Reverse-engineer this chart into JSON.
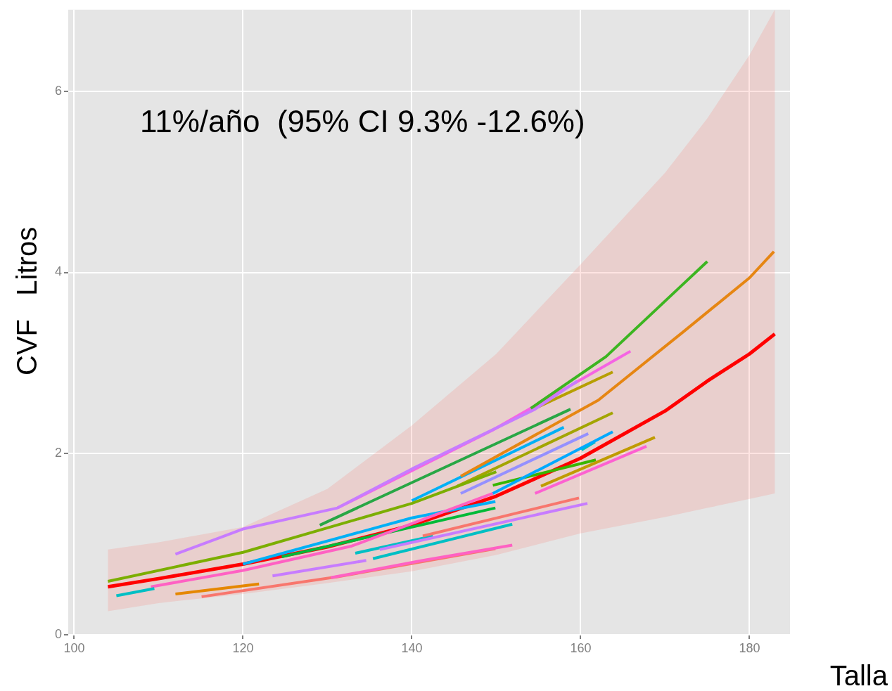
{
  "chart_data": {
    "type": "line",
    "xlabel": "Talla",
    "ylabel": "CVF   Litros",
    "annotations": [
      "11%/año  (95% CI 9.3% -12.6%)"
    ],
    "xlim": [
      99.3,
      184.8
    ],
    "xticks": [
      100,
      120,
      140,
      160,
      180
    ],
    "ylim": [
      0,
      6.9
    ],
    "yticks": [
      0,
      2,
      4,
      6
    ],
    "grid": true,
    "legend": false,
    "marker": "none",
    "line_style": "solid",
    "series": [
      {
        "color": "#3cb521",
        "x": [
          154.1,
          163,
          171.9,
          175
        ],
        "values": [
          2.5,
          3.07,
          3.85,
          4.12
        ]
      },
      {
        "color": "#e68613",
        "x": [
          145.8,
          162.1,
          172.1,
          180,
          182.9
        ],
        "values": [
          1.75,
          2.59,
          3.34,
          3.94,
          4.23
        ]
      },
      {
        "color": "#7cae00",
        "x": [
          104,
          120,
          140,
          150
        ],
        "values": [
          0.59,
          0.91,
          1.45,
          1.8
        ]
      },
      {
        "color": "#c77cff",
        "x": [
          112,
          120.1,
          131.2,
          140,
          154.6,
          159.6
        ],
        "values": [
          0.89,
          1.17,
          1.4,
          1.83,
          2.49,
          2.8
        ]
      },
      {
        "color": "#f564e3",
        "x": [
          131.2,
          149.6,
          165.9
        ],
        "values": [
          1.4,
          2.26,
          3.13
        ]
      },
      {
        "color": "#28a745",
        "x": [
          129.1,
          158.8
        ],
        "values": [
          1.21,
          2.49
        ]
      },
      {
        "color": "#b79f00",
        "x": [
          154.6,
          163.8
        ],
        "values": [
          2.5,
          2.9
        ]
      },
      {
        "color": "#00b0f6",
        "x": [
          140,
          158
        ],
        "values": [
          1.48,
          2.29
        ]
      },
      {
        "color": "#a3a500",
        "x": [
          145.4,
          163.8
        ],
        "values": [
          1.64,
          2.45
        ]
      },
      {
        "color": "#9590ff",
        "x": [
          145.8,
          160.9
        ],
        "values": [
          1.56,
          2.22
        ]
      },
      {
        "color": "#00a9ff",
        "x": [
          149.6,
          163.8
        ],
        "values": [
          1.56,
          2.24
        ]
      },
      {
        "color": "#00bfc4",
        "x": [
          160.1,
          161.7
        ],
        "values": [
          2.04,
          2.13
        ]
      },
      {
        "color": "#c09b00",
        "x": [
          155.3,
          168.8
        ],
        "values": [
          1.64,
          2.18
        ]
      },
      {
        "color": "#fd61d1",
        "x": [
          154.6,
          167.8
        ],
        "values": [
          1.56,
          2.08
        ]
      },
      {
        "color": "#39b600",
        "x": [
          149.6,
          161.8
        ],
        "values": [
          1.65,
          1.93
        ]
      },
      {
        "color": "#f8766d",
        "x": [
          141.3,
          159.8
        ],
        "values": [
          1.09,
          1.51
        ]
      },
      {
        "color": "#c77cff",
        "x": [
          136.2,
          160.8
        ],
        "values": [
          0.94,
          1.45
        ]
      },
      {
        "color": "#00bfc4",
        "x": [
          135.4,
          151.9
        ],
        "values": [
          0.84,
          1.22
        ]
      },
      {
        "color": "#ff61c3",
        "x": [
          130.4,
          141.3,
          151.9
        ],
        "values": [
          0.63,
          0.82,
          0.99
        ]
      },
      {
        "color": "#f8766d",
        "x": [
          115.1,
          131.2,
          149.9
        ],
        "values": [
          0.42,
          0.64,
          0.95
        ]
      },
      {
        "color": "#e58700",
        "x": [
          112,
          121.9
        ],
        "values": [
          0.45,
          0.56
        ]
      },
      {
        "color": "#00bfc4",
        "x": [
          105,
          109.5
        ],
        "values": [
          0.43,
          0.51
        ]
      },
      {
        "color": "#ff61c3",
        "x": [
          109.1,
          120,
          132.9,
          149.6
        ],
        "values": [
          0.53,
          0.71,
          0.98,
          1.56
        ]
      },
      {
        "color": "#c77cff",
        "x": [
          123.5,
          134.6
        ],
        "values": [
          0.65,
          0.82
        ]
      },
      {
        "color": "#00bfc4",
        "x": [
          133.3,
          142.5
        ],
        "values": [
          0.9,
          1.09
        ]
      },
      {
        "color": "#00b0f6",
        "x": [
          120,
          140,
          149.9
        ],
        "values": [
          0.78,
          1.29,
          1.47
        ]
      },
      {
        "color": "#00ba38",
        "x": [
          124.6,
          149.9
        ],
        "values": [
          0.86,
          1.4
        ]
      },
      {
        "color": "#ff0000",
        "x": [
          104,
          110,
          120,
          130,
          140,
          150,
          160,
          170,
          175,
          180,
          183
        ],
        "values": [
          0.53,
          0.62,
          0.78,
          0.97,
          1.21,
          1.53,
          1.95,
          2.47,
          2.8,
          3.1,
          3.32
        ],
        "lower": [
          0.26,
          0.35,
          0.45,
          0.57,
          0.7,
          0.88,
          1.12,
          1.3,
          1.4,
          1.5,
          1.56
        ],
        "upper": [
          0.94,
          1.02,
          1.19,
          1.61,
          2.31,
          3.1,
          4.09,
          5.1,
          5.7,
          6.4,
          6.9
        ]
      }
    ]
  }
}
